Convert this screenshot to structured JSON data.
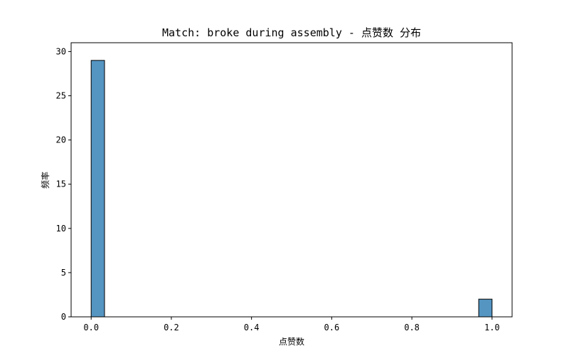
{
  "chart_data": {
    "type": "bar",
    "title": "Match: broke during assembly - 点赞数 分布",
    "xlabel": "点赞数",
    "ylabel": "频率",
    "xlim": [
      -0.05,
      1.05
    ],
    "ylim": [
      0,
      31
    ],
    "xticks": [
      "0.0",
      "0.2",
      "0.4",
      "0.6",
      "0.8",
      "1.0"
    ],
    "yticks": [
      "0",
      "5",
      "10",
      "15",
      "20",
      "25",
      "30"
    ],
    "bins": [
      {
        "x0": 0.0,
        "x1": 0.0333,
        "count": 29
      },
      {
        "x0": 0.9667,
        "x1": 1.0,
        "count": 2
      }
    ],
    "bar_color": "#5495c2",
    "edge_color": "#000000",
    "grid": false,
    "legend": "none"
  }
}
